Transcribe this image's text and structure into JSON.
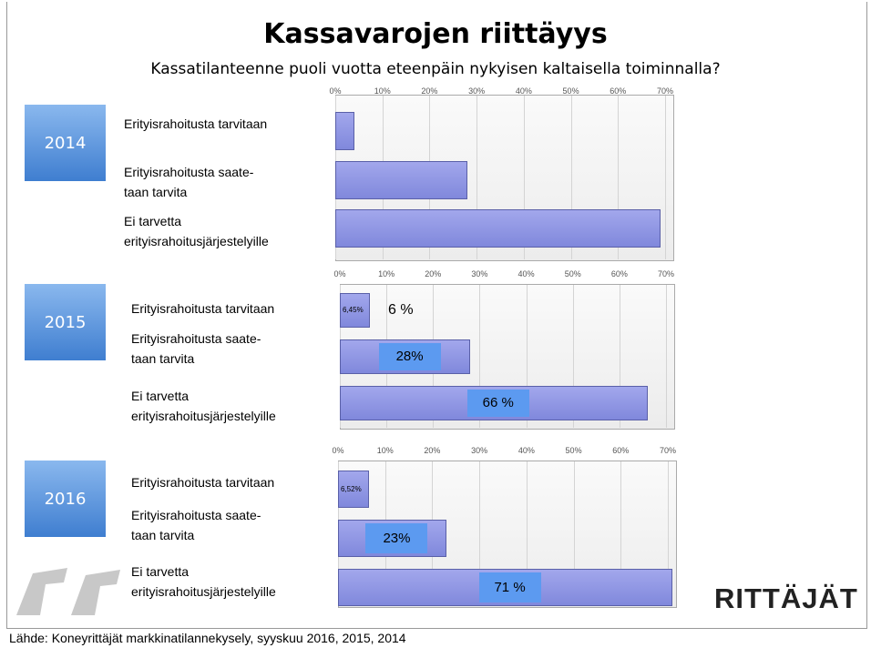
{
  "title": "Kassavarojen riittäyys",
  "subtitle": "Kassatilanteenne puoli vuotta eteenpäin nykyisen kaltaisella toiminnalla?",
  "chart_data": [
    {
      "type": "bar",
      "orientation": "horizontal",
      "title": "2014",
      "categories": [
        "Erityisrahoitusta tarvitaan",
        "Erityisrahoitusta saate-\ntaan tarvita",
        "Ei tarvetta\nerityisrahoitusjärjestelyille"
      ],
      "values": [
        4,
        28,
        69
      ],
      "color": "#8088dc",
      "xlim": [
        0,
        70
      ],
      "xticks": [
        {
          "value": 0,
          "label": "0%"
        },
        {
          "value": 10,
          "label": "10%"
        },
        {
          "value": 20,
          "label": "20%"
        },
        {
          "value": 30,
          "label": "30%"
        },
        {
          "value": 40,
          "label": "40%"
        },
        {
          "value": 50,
          "label": "50%"
        },
        {
          "value": 60,
          "label": "60%"
        },
        {
          "value": 70,
          "label": "70%"
        }
      ],
      "grid": true
    },
    {
      "type": "bar",
      "orientation": "horizontal",
      "title": "2015",
      "categories": [
        "Erityisrahoitusta tarvitaan",
        "Erityisrahoitusta saate-\ntaan tarvita",
        "Ei tarvetta\nerityisrahoitusjärjestelyille"
      ],
      "values": [
        6.45,
        28,
        66
      ],
      "value_labels": [
        "6 %",
        "28%",
        "66 %"
      ],
      "precise_labels": [
        "6,45%",
        null,
        null
      ],
      "color": "#8088dc",
      "xlim": [
        0,
        70
      ],
      "xticks": [
        {
          "value": 0,
          "label": "0%"
        },
        {
          "value": 10,
          "label": "10%"
        },
        {
          "value": 20,
          "label": "20%"
        },
        {
          "value": 30,
          "label": "30%"
        },
        {
          "value": 40,
          "label": "40%"
        },
        {
          "value": 50,
          "label": "50%"
        },
        {
          "value": 60,
          "label": "60%"
        },
        {
          "value": 70,
          "label": "70%"
        }
      ],
      "grid": true
    },
    {
      "type": "bar",
      "orientation": "horizontal",
      "title": "2016",
      "categories": [
        "Erityisrahoitusta tarvitaan",
        "Erityisrahoitusta saate-\ntaan tarvita",
        "Ei tarvetta\nerityisrahoitusjärjestelyille"
      ],
      "values": [
        6.52,
        23,
        71
      ],
      "value_labels": [
        null,
        "23%",
        "71 %"
      ],
      "precise_labels": [
        "6,52%",
        null,
        null
      ],
      "color": "#8088dc",
      "xlim": [
        0,
        70
      ],
      "xticks": [
        {
          "value": 0,
          "label": "0%"
        },
        {
          "value": 10,
          "label": "10%"
        },
        {
          "value": 20,
          "label": "20%"
        },
        {
          "value": 30,
          "label": "30%"
        },
        {
          "value": 40,
          "label": "40%"
        },
        {
          "value": 50,
          "label": "50%"
        },
        {
          "value": 60,
          "label": "60%"
        },
        {
          "value": 70,
          "label": "70%"
        }
      ],
      "grid": true
    }
  ],
  "logo": "RITTÄJÄT",
  "footer": "Lähde: Koneyrittäjät markkinatilannekysely, syyskuu 2016, 2015, 2014"
}
